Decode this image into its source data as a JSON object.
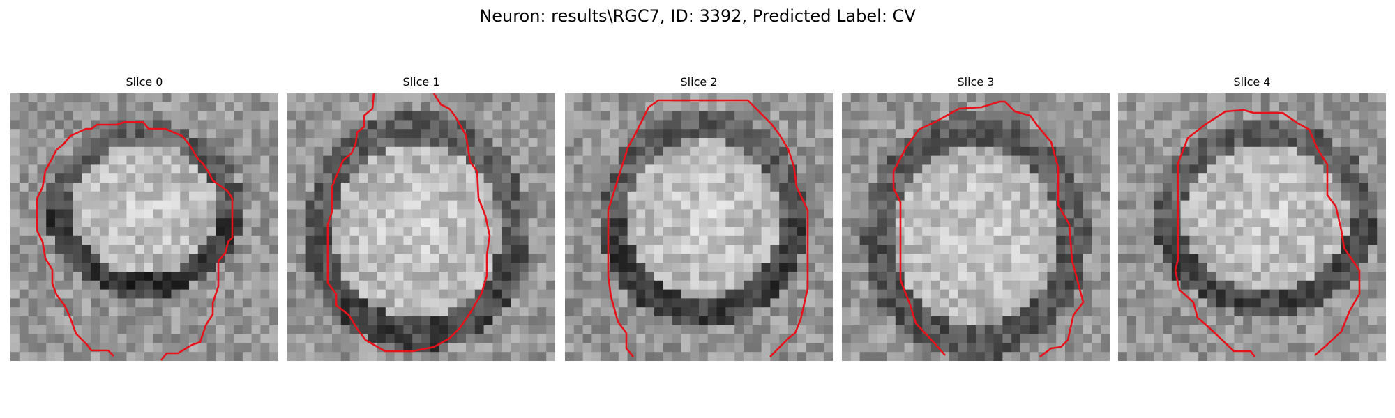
{
  "figure": {
    "title": "Neuron: results\\RGC7, ID: 3392, Predicted Label: CV"
  },
  "contour_color": "#e8111a",
  "panels": [
    {
      "title": "Slice 0"
    },
    {
      "title": "Slice 1"
    },
    {
      "title": "Slice 2"
    },
    {
      "title": "Slice 3"
    },
    {
      "title": "Slice 4"
    }
  ]
}
